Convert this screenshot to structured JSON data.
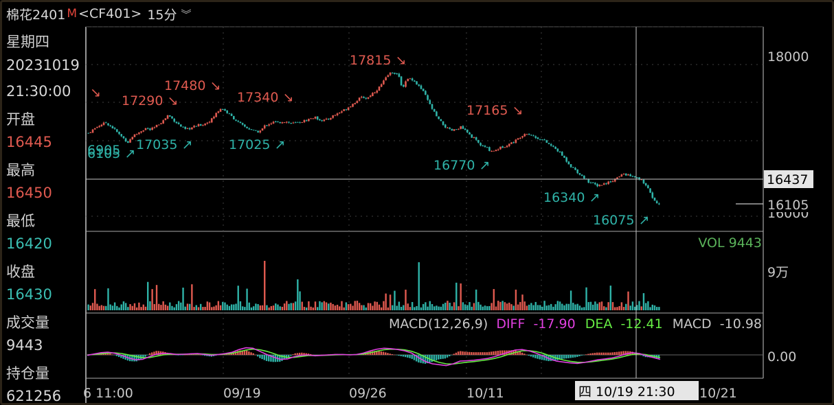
{
  "title": {
    "symbol": "棉花2401",
    "marker": "M",
    "code": "<CF401>",
    "period": "15分",
    "chevron_icon": "double-chevron-down-icon"
  },
  "sidebar": {
    "weekday": "星期四",
    "date": "20231019",
    "time": "21:30:00",
    "open_label": "开盘",
    "open_value": "16445",
    "high_label": "最高",
    "high_value": "16450",
    "low_label": "最低",
    "low_value": "16420",
    "close_label": "收盘",
    "close_value": "16430",
    "volume_label": "成交量",
    "volume_value": "9443",
    "oi_label": "持仓量",
    "oi_value": "621256"
  },
  "colors": {
    "up": "#e05a50",
    "down": "#2fb3a8",
    "diff": "#e040e0",
    "dea": "#66ee44",
    "grid": "#404040",
    "axis_text": "#c8c8c8"
  },
  "chart_data": {
    "type": "candlestick",
    "price_axis": {
      "ticks": [
        "18000",
        "16000"
      ],
      "crosshair_label": "16437",
      "last_label": "16105"
    },
    "annotations": [
      {
        "text": "17290 ↘",
        "kind": "high"
      },
      {
        "text": "17480 ↘",
        "kind": "high"
      },
      {
        "text": "17340 ↘",
        "kind": "high"
      },
      {
        "text": "17815 ↘",
        "kind": "high"
      },
      {
        "text": "17165 ↘",
        "kind": "high"
      },
      {
        "text": "↘",
        "kind": "high"
      },
      {
        "text": "6905",
        "kind": "low"
      },
      {
        "text": "6105 ↗",
        "kind": "low"
      },
      {
        "text": "17035 ↗",
        "kind": "low"
      },
      {
        "text": "17025 ↗",
        "kind": "low"
      },
      {
        "text": "16770 ↗",
        "kind": "low"
      },
      {
        "text": "16340 ↗",
        "kind": "low"
      },
      {
        "text": "16075 ↗",
        "kind": "low"
      }
    ],
    "price_path": [
      17020,
      17060,
      17100,
      17130,
      17150,
      17110,
      17060,
      17000,
      16950,
      16900,
      16980,
      17010,
      17050,
      17080,
      17060,
      17090,
      17140,
      17180,
      17250,
      17200,
      17150,
      17100,
      17060,
      17080,
      17100,
      17120,
      17130,
      17160,
      17200,
      17280,
      17340,
      17300,
      17250,
      17200,
      17150,
      17110,
      17080,
      17060,
      17030,
      17050,
      17120,
      17140,
      17160,
      17150,
      17170,
      17160,
      17140,
      17150,
      17160,
      17180,
      17200,
      17220,
      17200,
      17180,
      17190,
      17230,
      17260,
      17290,
      17320,
      17360,
      17400,
      17450,
      17480,
      17460,
      17520,
      17560,
      17620,
      17700,
      17780,
      17800,
      17760,
      17600,
      17700,
      17720,
      17660,
      17600,
      17520,
      17400,
      17300,
      17200,
      17140,
      17080,
      17050,
      17060,
      17100,
      17060,
      17000,
      16960,
      16900,
      16850,
      16830,
      16790,
      16800,
      16830,
      16850,
      16880,
      16900,
      16940,
      16990,
      17020,
      17000,
      16960,
      16950,
      16920,
      16880,
      16840,
      16800,
      16740,
      16670,
      16600,
      16550,
      16500,
      16450,
      16400,
      16370,
      16350,
      16360,
      16380,
      16400,
      16430,
      16460,
      16500,
      16480,
      16460,
      16440,
      16420,
      16350,
      16250,
      16150,
      16100
    ],
    "volume_axis": {
      "label": "VOL 9443",
      "tick": "9万"
    },
    "macd": {
      "label": "MACD(12,26,9)",
      "diff_label": "DIFF",
      "diff_value": "-17.90",
      "dea_label": "DEA",
      "dea_value": "-12.41",
      "macd_label": "MACD",
      "macd_value": "-10.98",
      "zero_tick": "0.00",
      "diff": [
        -5,
        10,
        25,
        30,
        18,
        -5,
        -35,
        -55,
        -50,
        -20,
        8,
        18,
        15,
        5,
        8,
        12,
        15,
        5,
        -5,
        5,
        15,
        30,
        60,
        80,
        75,
        40,
        5,
        -25,
        -50,
        -45,
        -20,
        -5,
        0,
        -10,
        -5,
        0,
        5,
        5,
        0,
        5,
        20,
        45,
        65,
        75,
        70,
        60,
        45,
        20,
        -30,
        -75,
        -100,
        -110,
        -120,
        -100,
        -70,
        -65,
        -60,
        -50,
        -40,
        -20,
        5,
        30,
        55,
        60,
        45,
        20,
        -10,
        -45,
        -70,
        -80,
        -90,
        -95,
        -85,
        -70,
        -55,
        -45,
        -35,
        -15,
        10,
        25,
        15,
        -10,
        -30,
        -50
      ],
      "dea": [
        0,
        5,
        12,
        20,
        22,
        15,
        0,
        -18,
        -30,
        -30,
        -15,
        0,
        8,
        8,
        8,
        10,
        12,
        10,
        5,
        5,
        10,
        18,
        35,
        55,
        65,
        58,
        40,
        15,
        -12,
        -28,
        -28,
        -18,
        -8,
        -8,
        -6,
        -3,
        0,
        2,
        2,
        3,
        10,
        25,
        42,
        58,
        64,
        63,
        56,
        40,
        12,
        -25,
        -60,
        -85,
        -100,
        -102,
        -92,
        -82,
        -75,
        -65,
        -55,
        -40,
        -20,
        5,
        28,
        45,
        48,
        38,
        18,
        -10,
        -38,
        -58,
        -72,
        -82,
        -84,
        -78,
        -68,
        -58,
        -48,
        -32,
        -12,
        5,
        10,
        2,
        -15,
        -30
      ]
    },
    "x_axis": {
      "ticks": [
        "6 11:00",
        "09/19",
        "09/26",
        "10/11",
        "10/21"
      ],
      "crosshair_label": "四 10/19 21:30"
    }
  }
}
